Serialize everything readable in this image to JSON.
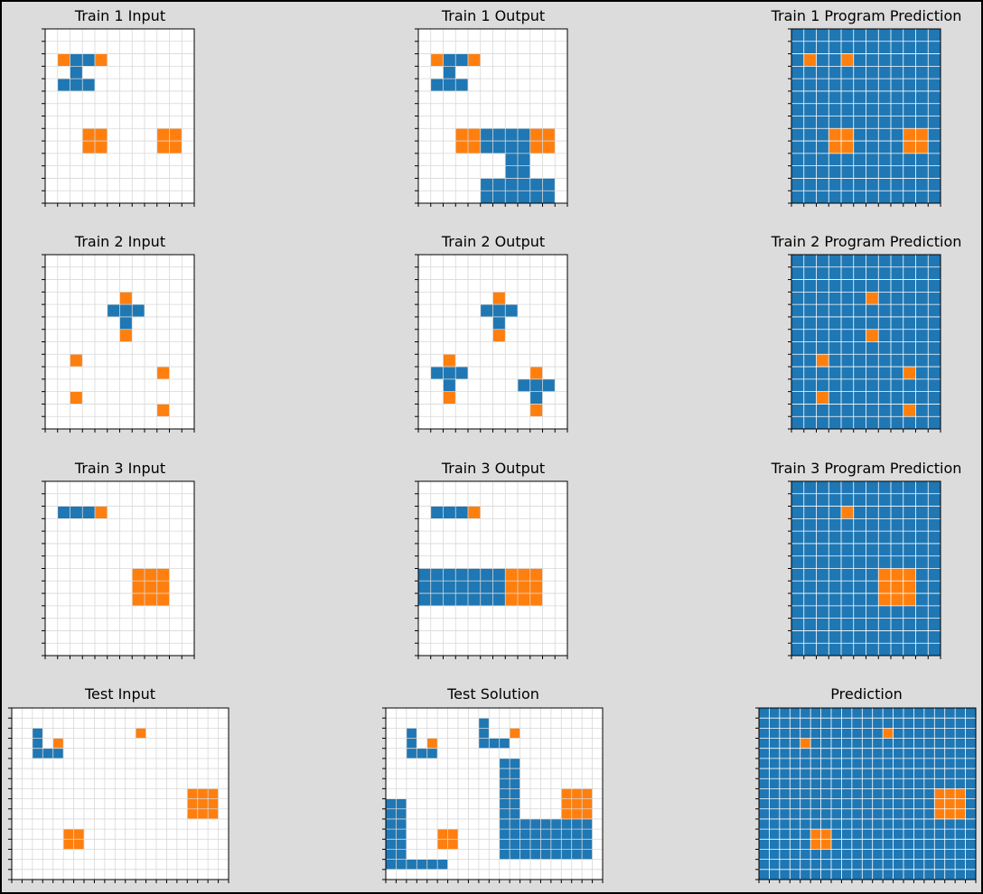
{
  "colors": {
    "background": "#dcdcdc",
    "grid_bg": "#ffffff",
    "blue": "#1f77b4",
    "orange": "#ff7f0e",
    "grid_line": "#d8d8d8",
    "pred_grid_line": "#ffffff"
  },
  "panels": [
    {
      "title": "Train 1 Input",
      "rows": 14,
      "cols": 12,
      "background": 0,
      "blue": [
        [
          2,
          2
        ],
        [
          2,
          3
        ],
        [
          3,
          2
        ],
        [
          4,
          1
        ],
        [
          4,
          2
        ],
        [
          4,
          3
        ]
      ],
      "orange": [
        [
          2,
          1
        ],
        [
          2,
          4
        ],
        [
          8,
          3
        ],
        [
          8,
          4
        ],
        [
          9,
          3
        ],
        [
          9,
          4
        ],
        [
          8,
          9
        ],
        [
          8,
          10
        ],
        [
          9,
          9
        ],
        [
          9,
          10
        ]
      ]
    },
    {
      "title": "Train 1 Output",
      "rows": 14,
      "cols": 12,
      "background": 0,
      "blue": [
        [
          2,
          2
        ],
        [
          2,
          3
        ],
        [
          3,
          2
        ],
        [
          4,
          1
        ],
        [
          4,
          2
        ],
        [
          4,
          3
        ],
        [
          8,
          5
        ],
        [
          8,
          6
        ],
        [
          8,
          7
        ],
        [
          8,
          8
        ],
        [
          9,
          5
        ],
        [
          9,
          6
        ],
        [
          9,
          7
        ],
        [
          9,
          8
        ],
        [
          10,
          7
        ],
        [
          10,
          8
        ],
        [
          11,
          7
        ],
        [
          11,
          8
        ],
        [
          12,
          5
        ],
        [
          12,
          6
        ],
        [
          12,
          7
        ],
        [
          12,
          8
        ],
        [
          12,
          9
        ],
        [
          12,
          10
        ],
        [
          13,
          5
        ],
        [
          13,
          6
        ],
        [
          13,
          7
        ],
        [
          13,
          8
        ],
        [
          13,
          9
        ],
        [
          13,
          10
        ]
      ],
      "orange": [
        [
          2,
          1
        ],
        [
          2,
          4
        ],
        [
          8,
          3
        ],
        [
          8,
          4
        ],
        [
          9,
          3
        ],
        [
          9,
          4
        ],
        [
          8,
          9
        ],
        [
          8,
          10
        ],
        [
          9,
          9
        ],
        [
          9,
          10
        ]
      ]
    },
    {
      "title": "Train 1 Program Prediction",
      "rows": 14,
      "cols": 12,
      "background": 1,
      "blue": [],
      "orange": [
        [
          2,
          1
        ],
        [
          2,
          4
        ],
        [
          8,
          3
        ],
        [
          8,
          4
        ],
        [
          9,
          3
        ],
        [
          9,
          4
        ],
        [
          8,
          9
        ],
        [
          8,
          10
        ],
        [
          9,
          9
        ],
        [
          9,
          10
        ]
      ]
    },
    {
      "title": "Train 2 Input",
      "rows": 14,
      "cols": 12,
      "background": 0,
      "blue": [
        [
          4,
          5
        ],
        [
          4,
          6
        ],
        [
          4,
          7
        ],
        [
          5,
          6
        ]
      ],
      "orange": [
        [
          3,
          6
        ],
        [
          6,
          6
        ],
        [
          8,
          2
        ],
        [
          9,
          9
        ],
        [
          11,
          2
        ],
        [
          12,
          9
        ]
      ]
    },
    {
      "title": "Train 2 Output",
      "rows": 14,
      "cols": 12,
      "background": 0,
      "blue": [
        [
          4,
          5
        ],
        [
          4,
          6
        ],
        [
          4,
          7
        ],
        [
          5,
          6
        ],
        [
          9,
          1
        ],
        [
          9,
          2
        ],
        [
          9,
          3
        ],
        [
          10,
          2
        ],
        [
          10,
          8
        ],
        [
          10,
          9
        ],
        [
          10,
          10
        ],
        [
          11,
          9
        ]
      ],
      "orange": [
        [
          3,
          6
        ],
        [
          6,
          6
        ],
        [
          8,
          2
        ],
        [
          11,
          2
        ],
        [
          9,
          9
        ],
        [
          12,
          9
        ]
      ]
    },
    {
      "title": "Train 2 Program Prediction",
      "rows": 14,
      "cols": 12,
      "background": 1,
      "blue": [],
      "orange": [
        [
          3,
          6
        ],
        [
          6,
          6
        ],
        [
          8,
          2
        ],
        [
          9,
          9
        ],
        [
          11,
          2
        ],
        [
          12,
          9
        ]
      ]
    },
    {
      "title": "Train 3 Input",
      "rows": 14,
      "cols": 12,
      "background": 0,
      "blue": [
        [
          2,
          1
        ],
        [
          2,
          2
        ],
        [
          2,
          3
        ]
      ],
      "orange": [
        [
          2,
          4
        ],
        [
          7,
          7
        ],
        [
          7,
          8
        ],
        [
          7,
          9
        ],
        [
          8,
          7
        ],
        [
          8,
          8
        ],
        [
          8,
          9
        ],
        [
          9,
          7
        ],
        [
          9,
          8
        ],
        [
          9,
          9
        ]
      ]
    },
    {
      "title": "Train 3 Output",
      "rows": 14,
      "cols": 12,
      "background": 0,
      "blue": [
        [
          2,
          1
        ],
        [
          2,
          2
        ],
        [
          2,
          3
        ],
        [
          7,
          0
        ],
        [
          7,
          1
        ],
        [
          7,
          2
        ],
        [
          7,
          3
        ],
        [
          7,
          4
        ],
        [
          7,
          5
        ],
        [
          7,
          6
        ],
        [
          8,
          0
        ],
        [
          8,
          1
        ],
        [
          8,
          2
        ],
        [
          8,
          3
        ],
        [
          8,
          4
        ],
        [
          8,
          5
        ],
        [
          8,
          6
        ],
        [
          9,
          0
        ],
        [
          9,
          1
        ],
        [
          9,
          2
        ],
        [
          9,
          3
        ],
        [
          9,
          4
        ],
        [
          9,
          5
        ],
        [
          9,
          6
        ]
      ],
      "orange": [
        [
          2,
          4
        ],
        [
          7,
          7
        ],
        [
          7,
          8
        ],
        [
          7,
          9
        ],
        [
          8,
          7
        ],
        [
          8,
          8
        ],
        [
          8,
          9
        ],
        [
          9,
          7
        ],
        [
          9,
          8
        ],
        [
          9,
          9
        ]
      ]
    },
    {
      "title": "Train 3 Program Prediction",
      "rows": 14,
      "cols": 12,
      "background": 1,
      "blue": [],
      "orange": [
        [
          2,
          4
        ],
        [
          7,
          7
        ],
        [
          7,
          8
        ],
        [
          7,
          9
        ],
        [
          8,
          7
        ],
        [
          8,
          8
        ],
        [
          8,
          9
        ],
        [
          9,
          7
        ],
        [
          9,
          8
        ],
        [
          9,
          9
        ]
      ]
    },
    {
      "title": "Test Input",
      "rows": 17,
      "cols": 21,
      "background": 0,
      "blue": [
        [
          2,
          2
        ],
        [
          3,
          2
        ],
        [
          4,
          2
        ],
        [
          4,
          3
        ],
        [
          4,
          4
        ]
      ],
      "orange": [
        [
          2,
          12
        ],
        [
          3,
          4
        ],
        [
          8,
          17
        ],
        [
          8,
          18
        ],
        [
          8,
          19
        ],
        [
          9,
          17
        ],
        [
          9,
          18
        ],
        [
          9,
          19
        ],
        [
          10,
          17
        ],
        [
          10,
          18
        ],
        [
          10,
          19
        ],
        [
          12,
          5
        ],
        [
          12,
          6
        ],
        [
          13,
          5
        ],
        [
          13,
          6
        ]
      ]
    },
    {
      "title": "Test Solution",
      "rows": 17,
      "cols": 21,
      "background": 0,
      "blue": [
        [
          1,
          9
        ],
        [
          2,
          9
        ],
        [
          2,
          2
        ],
        [
          3,
          2
        ],
        [
          4,
          2
        ],
        [
          4,
          3
        ],
        [
          4,
          4
        ],
        [
          3,
          9
        ],
        [
          3,
          10
        ],
        [
          3,
          11
        ],
        [
          9,
          1
        ],
        [
          10,
          1
        ],
        [
          11,
          1
        ],
        [
          12,
          1
        ],
        [
          13,
          1
        ],
        [
          14,
          1
        ],
        [
          9,
          0
        ],
        [
          10,
          0
        ],
        [
          11,
          0
        ],
        [
          12,
          0
        ],
        [
          13,
          0
        ],
        [
          14,
          0
        ],
        [
          15,
          0
        ],
        [
          15,
          1
        ],
        [
          15,
          2
        ],
        [
          15,
          3
        ],
        [
          15,
          4
        ],
        [
          15,
          5
        ],
        [
          5,
          11
        ],
        [
          5,
          12
        ],
        [
          6,
          11
        ],
        [
          6,
          12
        ],
        [
          7,
          11
        ],
        [
          7,
          12
        ],
        [
          8,
          11
        ],
        [
          8,
          12
        ],
        [
          9,
          11
        ],
        [
          9,
          12
        ],
        [
          10,
          11
        ],
        [
          10,
          12
        ],
        [
          11,
          11
        ],
        [
          11,
          12
        ],
        [
          12,
          11
        ],
        [
          12,
          12
        ],
        [
          13,
          11
        ],
        [
          13,
          12
        ],
        [
          14,
          11
        ],
        [
          14,
          12
        ],
        [
          11,
          13
        ],
        [
          11,
          14
        ],
        [
          11,
          15
        ],
        [
          11,
          16
        ],
        [
          11,
          17
        ],
        [
          11,
          18
        ],
        [
          11,
          19
        ],
        [
          12,
          13
        ],
        [
          12,
          14
        ],
        [
          12,
          15
        ],
        [
          12,
          16
        ],
        [
          12,
          17
        ],
        [
          12,
          18
        ],
        [
          12,
          19
        ],
        [
          13,
          13
        ],
        [
          13,
          14
        ],
        [
          13,
          15
        ],
        [
          13,
          16
        ],
        [
          13,
          17
        ],
        [
          13,
          18
        ],
        [
          13,
          19
        ],
        [
          14,
          13
        ],
        [
          14,
          14
        ],
        [
          14,
          15
        ],
        [
          14,
          16
        ],
        [
          14,
          17
        ],
        [
          14,
          18
        ],
        [
          14,
          19
        ]
      ],
      "orange": [
        [
          2,
          12
        ],
        [
          3,
          4
        ],
        [
          8,
          17
        ],
        [
          8,
          18
        ],
        [
          8,
          19
        ],
        [
          9,
          17
        ],
        [
          9,
          18
        ],
        [
          9,
          19
        ],
        [
          10,
          17
        ],
        [
          10,
          18
        ],
        [
          10,
          19
        ],
        [
          12,
          5
        ],
        [
          12,
          6
        ],
        [
          13,
          5
        ],
        [
          13,
          6
        ]
      ]
    },
    {
      "title": "Prediction",
      "rows": 17,
      "cols": 21,
      "background": 1,
      "blue": [],
      "orange": [
        [
          2,
          12
        ],
        [
          3,
          4
        ],
        [
          8,
          17
        ],
        [
          8,
          18
        ],
        [
          8,
          19
        ],
        [
          9,
          17
        ],
        [
          9,
          18
        ],
        [
          9,
          19
        ],
        [
          10,
          17
        ],
        [
          10,
          18
        ],
        [
          10,
          19
        ],
        [
          12,
          5
        ],
        [
          12,
          6
        ],
        [
          13,
          5
        ],
        [
          13,
          6
        ]
      ]
    }
  ]
}
